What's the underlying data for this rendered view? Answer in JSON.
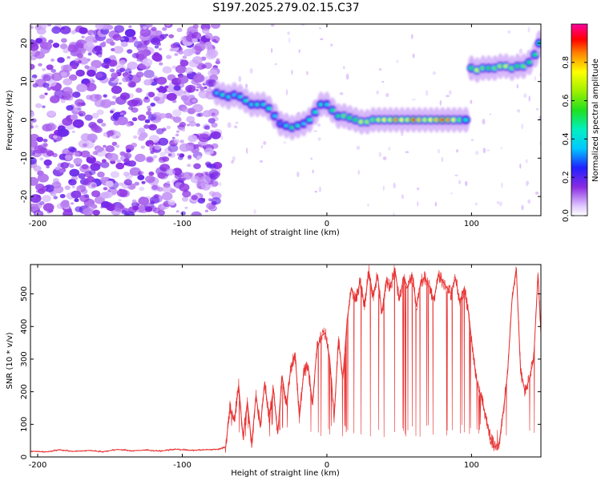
{
  "title": "S197.2025.279.02.15.C37",
  "colors": {
    "series_snr": "#e83030",
    "low_activity": "#8a2be2",
    "frame": "#000000"
  },
  "chart_data": [
    {
      "type": "heatmap",
      "name": "spectrogram",
      "xlabel": "Height of straight line (km)",
      "ylabel": "Frequency (Hz)",
      "xlim": [
        -205,
        148
      ],
      "ylim": [
        -25,
        25
      ],
      "xticks": [
        -200,
        -100,
        0,
        100
      ],
      "yticks": [
        -20,
        -10,
        0,
        10,
        20
      ],
      "colorbar": {
        "label": "Normalized spectral amplitude",
        "range": [
          0,
          1
        ],
        "ticks": [
          "0.0",
          "0.2",
          "0.4",
          "0.6",
          "0.8"
        ],
        "tick_values": [
          0,
          0.2,
          0.4,
          0.6,
          0.8
        ]
      },
      "noise_region_x": [
        -205,
        -75
      ],
      "ridge": [
        {
          "x": -76,
          "f": 7,
          "a": 0.35
        },
        {
          "x": -72,
          "f": 6.5,
          "a": 0.45
        },
        {
          "x": -68,
          "f": 6,
          "a": 0.4
        },
        {
          "x": -64,
          "f": 6.5,
          "a": 0.35
        },
        {
          "x": -60,
          "f": 6,
          "a": 0.4
        },
        {
          "x": -56,
          "f": 5,
          "a": 0.45
        },
        {
          "x": -52,
          "f": 4,
          "a": 0.4
        },
        {
          "x": -48,
          "f": 4,
          "a": 0.45
        },
        {
          "x": -44,
          "f": 4,
          "a": 0.4
        },
        {
          "x": -40,
          "f": 3,
          "a": 0.45
        },
        {
          "x": -36,
          "f": 1,
          "a": 0.35
        },
        {
          "x": -32,
          "f": -1,
          "a": 0.3
        },
        {
          "x": -28,
          "f": -1.5,
          "a": 0.4
        },
        {
          "x": -24,
          "f": -2,
          "a": 0.5
        },
        {
          "x": -20,
          "f": -1.5,
          "a": 0.45
        },
        {
          "x": -16,
          "f": -1,
          "a": 0.35
        },
        {
          "x": -12,
          "f": 0,
          "a": 0.45
        },
        {
          "x": -8,
          "f": 2,
          "a": 0.45
        },
        {
          "x": -4,
          "f": 4,
          "a": 0.45
        },
        {
          "x": 0,
          "f": 4,
          "a": 0.4
        },
        {
          "x": 4,
          "f": 2.5,
          "a": 0.5
        },
        {
          "x": 8,
          "f": 1,
          "a": 0.5
        },
        {
          "x": 12,
          "f": 1,
          "a": 0.6
        },
        {
          "x": 16,
          "f": 0.5,
          "a": 0.55
        },
        {
          "x": 20,
          "f": 0,
          "a": 0.55
        },
        {
          "x": 24,
          "f": -0.5,
          "a": 0.7
        },
        {
          "x": 28,
          "f": -0.5,
          "a": 0.65
        },
        {
          "x": 32,
          "f": 0,
          "a": 0.6
        },
        {
          "x": 36,
          "f": 0,
          "a": 0.7
        },
        {
          "x": 40,
          "f": 0,
          "a": 0.75
        },
        {
          "x": 44,
          "f": 0,
          "a": 0.7
        },
        {
          "x": 48,
          "f": 0,
          "a": 0.85
        },
        {
          "x": 52,
          "f": 0,
          "a": 0.75
        },
        {
          "x": 56,
          "f": 0,
          "a": 0.7
        },
        {
          "x": 60,
          "f": 0,
          "a": 0.9
        },
        {
          "x": 64,
          "f": 0,
          "a": 0.8
        },
        {
          "x": 68,
          "f": 0,
          "a": 0.7
        },
        {
          "x": 72,
          "f": 0,
          "a": 0.75
        },
        {
          "x": 76,
          "f": 0,
          "a": 0.8
        },
        {
          "x": 80,
          "f": 0,
          "a": 0.9
        },
        {
          "x": 84,
          "f": 0,
          "a": 0.85
        },
        {
          "x": 88,
          "f": 0,
          "a": 0.75
        },
        {
          "x": 92,
          "f": 0,
          "a": 0.6
        },
        {
          "x": 96,
          "f": 0,
          "a": 0.45
        },
        {
          "x": 100,
          "f": 13.5,
          "a": 0.55
        },
        {
          "x": 104,
          "f": 13,
          "a": 0.7
        },
        {
          "x": 108,
          "f": 13.5,
          "a": 0.6
        },
        {
          "x": 112,
          "f": 13.5,
          "a": 0.55
        },
        {
          "x": 116,
          "f": 13.5,
          "a": 0.6
        },
        {
          "x": 120,
          "f": 14,
          "a": 0.65
        },
        {
          "x": 124,
          "f": 14,
          "a": 0.7
        },
        {
          "x": 128,
          "f": 13.5,
          "a": 0.6
        },
        {
          "x": 132,
          "f": 14,
          "a": 0.55
        },
        {
          "x": 136,
          "f": 14,
          "a": 0.6
        },
        {
          "x": 140,
          "f": 15,
          "a": 0.5
        },
        {
          "x": 144,
          "f": 17,
          "a": 0.5
        },
        {
          "x": 147,
          "f": 20,
          "a": 0.45
        }
      ]
    },
    {
      "type": "line",
      "name": "snr",
      "xlabel": "Height of straight line (km)",
      "ylabel": "SNR (10 * v/v)",
      "xlim": [
        -205,
        148
      ],
      "ylim": [
        0,
        590
      ],
      "xticks": [
        -200,
        -100,
        0,
        100
      ],
      "yticks": [
        0,
        100,
        200,
        300,
        400,
        500
      ],
      "x": [
        -205,
        -195,
        -185,
        -175,
        -165,
        -155,
        -145,
        -135,
        -125,
        -115,
        -105,
        -95,
        -85,
        -75,
        -70,
        -67,
        -64,
        -61,
        -58,
        -55,
        -52,
        -49,
        -46,
        -43,
        -40,
        -37,
        -34,
        -31,
        -28,
        -25,
        -22,
        -19,
        -16,
        -13,
        -10,
        -7,
        -4,
        -1,
        2,
        5,
        8,
        11,
        14,
        17,
        20,
        23,
        26,
        29,
        32,
        35,
        38,
        41,
        44,
        47,
        50,
        53,
        56,
        59,
        62,
        65,
        68,
        71,
        74,
        77,
        80,
        83,
        86,
        89,
        92,
        95,
        98,
        101,
        104,
        107,
        110,
        113,
        116,
        119,
        122,
        125,
        128,
        131,
        134,
        137,
        140,
        143,
        146,
        148
      ],
      "y": [
        18,
        15,
        22,
        17,
        20,
        16,
        23,
        19,
        21,
        18,
        24,
        20,
        22,
        24,
        30,
        150,
        110,
        220,
        60,
        170,
        40,
        190,
        90,
        230,
        120,
        210,
        70,
        250,
        160,
        270,
        320,
        120,
        260,
        280,
        160,
        330,
        370,
        380,
        300,
        120,
        360,
        240,
        420,
        520,
        480,
        540,
        460,
        570,
        490,
        560,
        440,
        540,
        520,
        580,
        480,
        550,
        520,
        560,
        460,
        540,
        550,
        520,
        480,
        560,
        540,
        520,
        500,
        550,
        470,
        520,
        440,
        320,
        220,
        180,
        120,
        60,
        30,
        40,
        140,
        260,
        480,
        580,
        260,
        200,
        240,
        300,
        560,
        380
      ]
    }
  ],
  "readouts": {
    "top_ytick_labels": [
      "-20",
      "-10",
      "0",
      "10",
      "20"
    ],
    "x_tick_labels": [
      "-200",
      "-100",
      "0",
      "100"
    ],
    "snr_ytick_labels": [
      "0",
      "100",
      "200",
      "300",
      "400",
      "500"
    ]
  }
}
